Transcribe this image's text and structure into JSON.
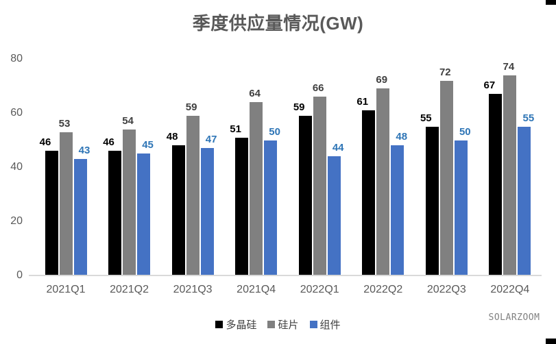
{
  "title": "季度供应量情况(GW)",
  "watermark": "SOLARZOOM",
  "chart_data": {
    "type": "bar",
    "title": "季度供应量情况(GW)",
    "categories": [
      "2021Q1",
      "2021Q2",
      "2021Q3",
      "2021Q4",
      "2022Q1",
      "2022Q2",
      "2022Q3",
      "2022Q4"
    ],
    "series": [
      {
        "name": "多晶硅",
        "color": "#000000",
        "label_color": "#000000",
        "values": [
          46,
          46,
          48,
          51,
          59,
          61,
          55,
          67
        ]
      },
      {
        "name": "硅片",
        "color": "#808080",
        "label_color": "#404040",
        "values": [
          53,
          54,
          59,
          64,
          66,
          69,
          72,
          74
        ]
      },
      {
        "name": "组件",
        "color": "#4472C4",
        "label_color": "#2E75B6",
        "values": [
          43,
          45,
          47,
          50,
          44,
          48,
          50,
          55
        ]
      }
    ],
    "xlabel": "",
    "ylabel": "",
    "ylim": [
      0,
      80
    ],
    "yticks": [
      0,
      20,
      40,
      60,
      80
    ],
    "grid": false,
    "legend_position": "bottom",
    "data_labels": true
  },
  "colors": {
    "background": "#ffffff",
    "title_text": "#595959",
    "axis_text": "#595959",
    "axis_line": "#D9D9D9",
    "legend_text": "#404040",
    "watermark_text": "#808080",
    "corner_mark": "#000000"
  }
}
